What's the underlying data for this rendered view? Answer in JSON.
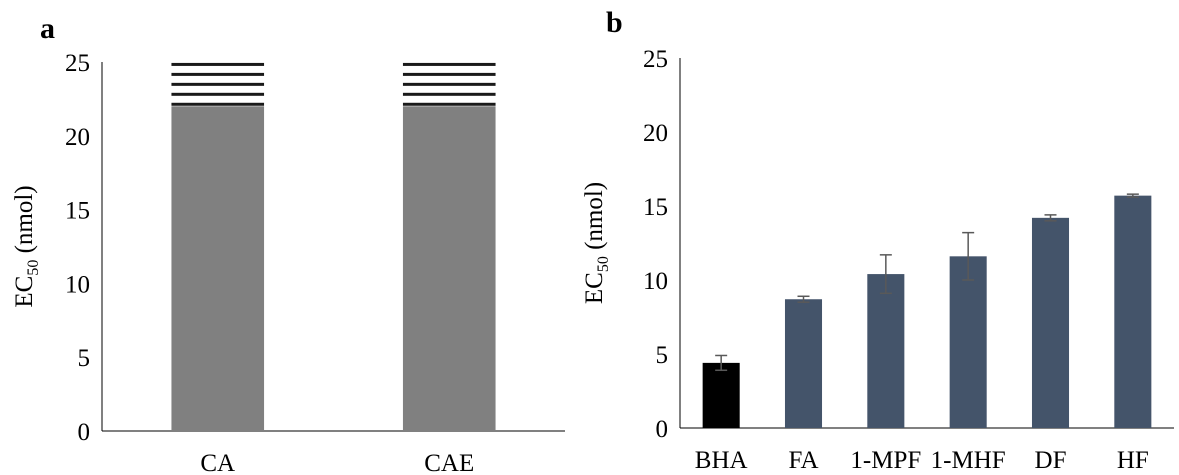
{
  "panels": [
    {
      "letter": "a"
    },
    {
      "letter": "b"
    }
  ],
  "chart_data": [
    {
      "type": "bar",
      "title": "",
      "xlabel": "",
      "ylabel": "EC50 (nmol)",
      "ylabel_main": "EC",
      "ylabel_sub": "50",
      "ylabel_unit": " (nmol)",
      "ylim": [
        0,
        25
      ],
      "yticks": [
        0,
        5,
        10,
        15,
        20,
        25
      ],
      "categories": [
        "CA",
        "CAE"
      ],
      "values": [
        22,
        22
      ],
      "axis_break": true,
      "bar_color": "#808080",
      "break_color": "#1a1a1a",
      "grid": false
    },
    {
      "type": "bar",
      "title": "",
      "xlabel": "",
      "ylabel": "EC50 (nmol)",
      "ylabel_main": "EC",
      "ylabel_sub": "50",
      "ylabel_unit": " (nmol)",
      "ylim": [
        0,
        25
      ],
      "yticks": [
        0,
        5,
        10,
        15,
        20,
        25
      ],
      "categories": [
        "BHA",
        "FA",
        "1-MPF",
        "1-MHF",
        "DF",
        "HF"
      ],
      "values": [
        4.4,
        8.7,
        10.4,
        11.6,
        14.2,
        15.7
      ],
      "errors": [
        0.5,
        0.2,
        1.3,
        1.6,
        0.2,
        0.1
      ],
      "colors": [
        "#000000",
        "#44546a",
        "#44546a",
        "#44546a",
        "#44546a",
        "#44546a"
      ],
      "grid": false
    }
  ]
}
